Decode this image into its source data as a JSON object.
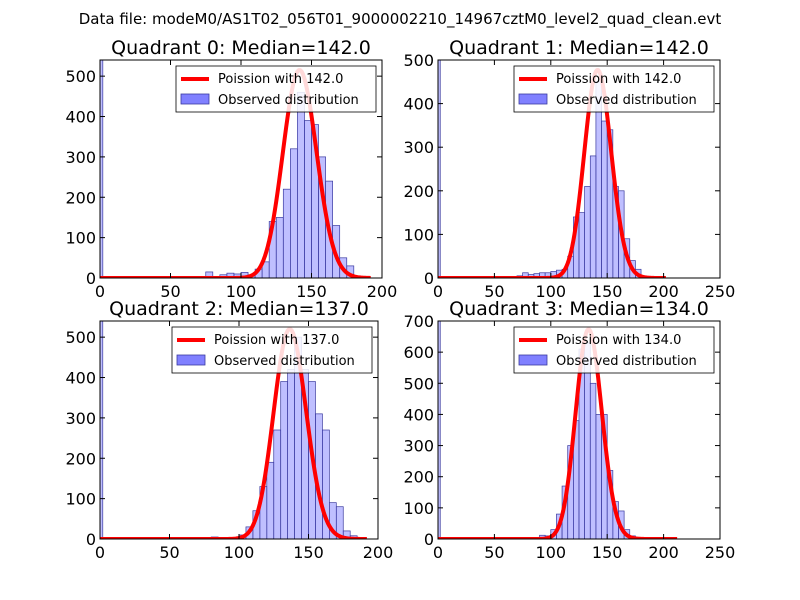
{
  "figure_title": "Data file: modeM0/AS1T02_056T01_9000002210_14967cztM0_level2_quad_clean.evt",
  "colors": {
    "bars": "#8080ff",
    "bar_edge": "#3a3aa0",
    "curve": "#ff0000"
  },
  "chart_data": [
    {
      "type": "bar",
      "title": "Quadrant 0: Median=142.0",
      "legend": [
        "Poission with 142.0",
        "Observed distribution"
      ],
      "legend_position": "top-right",
      "xlim": [
        0,
        200
      ],
      "ylim": [
        0,
        540
      ],
      "xticks": [
        0,
        50,
        100,
        150,
        200
      ],
      "yticks": [
        0,
        100,
        200,
        300,
        400,
        500
      ],
      "bin_width": 5,
      "bins": [
        [
          0,
          2,
          540
        ],
        [
          75,
          80,
          15
        ],
        [
          85,
          90,
          8
        ],
        [
          90,
          95,
          12
        ],
        [
          95,
          100,
          10
        ],
        [
          100,
          105,
          14
        ],
        [
          105,
          110,
          8
        ],
        [
          110,
          115,
          22
        ],
        [
          115,
          120,
          40
        ],
        [
          120,
          125,
          140
        ],
        [
          125,
          130,
          150
        ],
        [
          130,
          135,
          220
        ],
        [
          135,
          140,
          320
        ],
        [
          140,
          145,
          460
        ],
        [
          145,
          150,
          390
        ],
        [
          150,
          155,
          380
        ],
        [
          155,
          160,
          300
        ],
        [
          160,
          165,
          240
        ],
        [
          165,
          170,
          130
        ],
        [
          170,
          175,
          50
        ],
        [
          175,
          180,
          30
        ],
        [
          180,
          185,
          5
        ]
      ],
      "poisson_mean": 142.0,
      "curve_peak": 515,
      "curve_range": [
        0,
        192
      ]
    },
    {
      "type": "bar",
      "title": "Quadrant 1: Median=142.0",
      "legend": [
        "Poission with 142.0",
        "Observed distribution"
      ],
      "legend_position": "top-right",
      "xlim": [
        0,
        250
      ],
      "ylim": [
        0,
        500
      ],
      "xticks": [
        0,
        50,
        100,
        150,
        200,
        250
      ],
      "yticks": [
        0,
        100,
        200,
        300,
        400,
        500
      ],
      "bin_width": 5,
      "bins": [
        [
          0,
          2,
          500
        ],
        [
          70,
          75,
          5
        ],
        [
          75,
          80,
          12
        ],
        [
          80,
          85,
          8
        ],
        [
          85,
          90,
          10
        ],
        [
          90,
          95,
          12
        ],
        [
          95,
          100,
          12
        ],
        [
          100,
          105,
          15
        ],
        [
          105,
          110,
          18
        ],
        [
          110,
          115,
          20
        ],
        [
          115,
          120,
          50
        ],
        [
          120,
          125,
          140
        ],
        [
          125,
          130,
          150
        ],
        [
          130,
          135,
          210
        ],
        [
          135,
          140,
          280
        ],
        [
          140,
          145,
          450
        ],
        [
          145,
          150,
          360
        ],
        [
          150,
          155,
          340
        ],
        [
          155,
          160,
          210
        ],
        [
          160,
          165,
          200
        ],
        [
          165,
          170,
          90
        ],
        [
          170,
          175,
          40
        ],
        [
          175,
          180,
          20
        ],
        [
          180,
          185,
          5
        ]
      ],
      "poisson_mean": 142.0,
      "curve_peak": 477,
      "curve_range": [
        0,
        202
      ]
    },
    {
      "type": "bar",
      "title": "Quadrant 2: Median=137.0",
      "legend": [
        "Poission with 137.0",
        "Observed distribution"
      ],
      "legend_position": "top-right",
      "xlim": [
        0,
        200
      ],
      "ylim": [
        0,
        540
      ],
      "xticks": [
        0,
        50,
        100,
        150,
        200
      ],
      "yticks": [
        0,
        100,
        200,
        300,
        400,
        500
      ],
      "bin_width": 5,
      "bins": [
        [
          0,
          2,
          540
        ],
        [
          80,
          85,
          5
        ],
        [
          100,
          105,
          10
        ],
        [
          105,
          110,
          30
        ],
        [
          110,
          115,
          70
        ],
        [
          115,
          120,
          130
        ],
        [
          120,
          125,
          190
        ],
        [
          125,
          130,
          270
        ],
        [
          130,
          135,
          390
        ],
        [
          135,
          140,
          420
        ],
        [
          140,
          145,
          500
        ],
        [
          145,
          150,
          420
        ],
        [
          150,
          155,
          390
        ],
        [
          155,
          160,
          310
        ],
        [
          160,
          165,
          270
        ],
        [
          165,
          170,
          90
        ],
        [
          170,
          175,
          80
        ],
        [
          175,
          180,
          20
        ],
        [
          180,
          185,
          8
        ]
      ],
      "poisson_mean": 137.0,
      "curve_peak": 520,
      "curve_range": [
        0,
        192
      ]
    },
    {
      "type": "bar",
      "title": "Quadrant 3: Median=134.0",
      "legend": [
        "Poission with 134.0",
        "Observed distribution"
      ],
      "legend_position": "top-right",
      "xlim": [
        0,
        250
      ],
      "ylim": [
        0,
        700
      ],
      "xticks": [
        0,
        50,
        100,
        150,
        200,
        250
      ],
      "yticks": [
        0,
        100,
        200,
        300,
        400,
        500,
        600,
        700
      ],
      "bin_width": 5,
      "bins": [
        [
          0,
          2,
          700
        ],
        [
          85,
          90,
          5
        ],
        [
          90,
          95,
          12
        ],
        [
          95,
          100,
          10
        ],
        [
          100,
          105,
          30
        ],
        [
          105,
          110,
          80
        ],
        [
          110,
          115,
          170
        ],
        [
          115,
          120,
          300
        ],
        [
          120,
          125,
          380
        ],
        [
          125,
          130,
          610
        ],
        [
          130,
          135,
          630
        ],
        [
          135,
          140,
          500
        ],
        [
          140,
          145,
          400
        ],
        [
          145,
          150,
          400
        ],
        [
          150,
          155,
          220
        ],
        [
          155,
          160,
          120
        ],
        [
          160,
          165,
          90
        ],
        [
          165,
          170,
          30
        ],
        [
          170,
          175,
          10
        ]
      ],
      "poisson_mean": 134.0,
      "curve_peak": 673,
      "curve_range": [
        0,
        212
      ]
    }
  ]
}
